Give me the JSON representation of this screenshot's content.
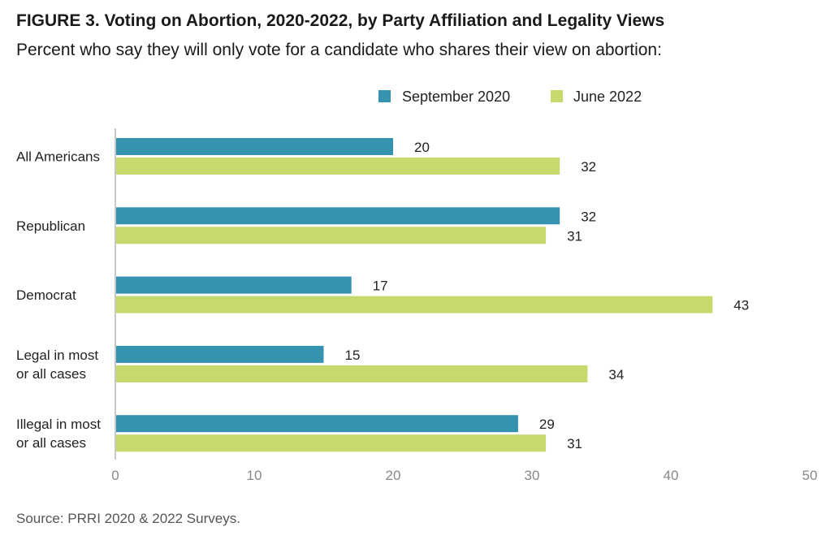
{
  "title": "FIGURE 3.  Voting on Abortion, 2020-2022, by Party Affiliation and Legality Views",
  "subtitle": "Percent who say they will only vote for a candidate who shares their view on abortion:",
  "source": "Source: PRRI 2020 & 2022 Surveys.",
  "chart_data": {
    "type": "bar",
    "orientation": "horizontal",
    "categories": [
      [
        "All Americans"
      ],
      [
        "Republican"
      ],
      [
        "Democrat"
      ],
      [
        "Legal in most",
        "or all cases"
      ],
      [
        "Illegal in most",
        "or all cases"
      ]
    ],
    "series": [
      {
        "name": "September 2020",
        "color": "#3593b0",
        "values": [
          20,
          32,
          17,
          15,
          29
        ]
      },
      {
        "name": "June 2022",
        "color": "#c5d96d",
        "values": [
          32,
          31,
          43,
          34,
          31
        ]
      }
    ],
    "xlim": [
      0,
      50
    ],
    "xticks": [
      0,
      10,
      20,
      30,
      40,
      50
    ],
    "legend_position": "top",
    "grid": false
  }
}
